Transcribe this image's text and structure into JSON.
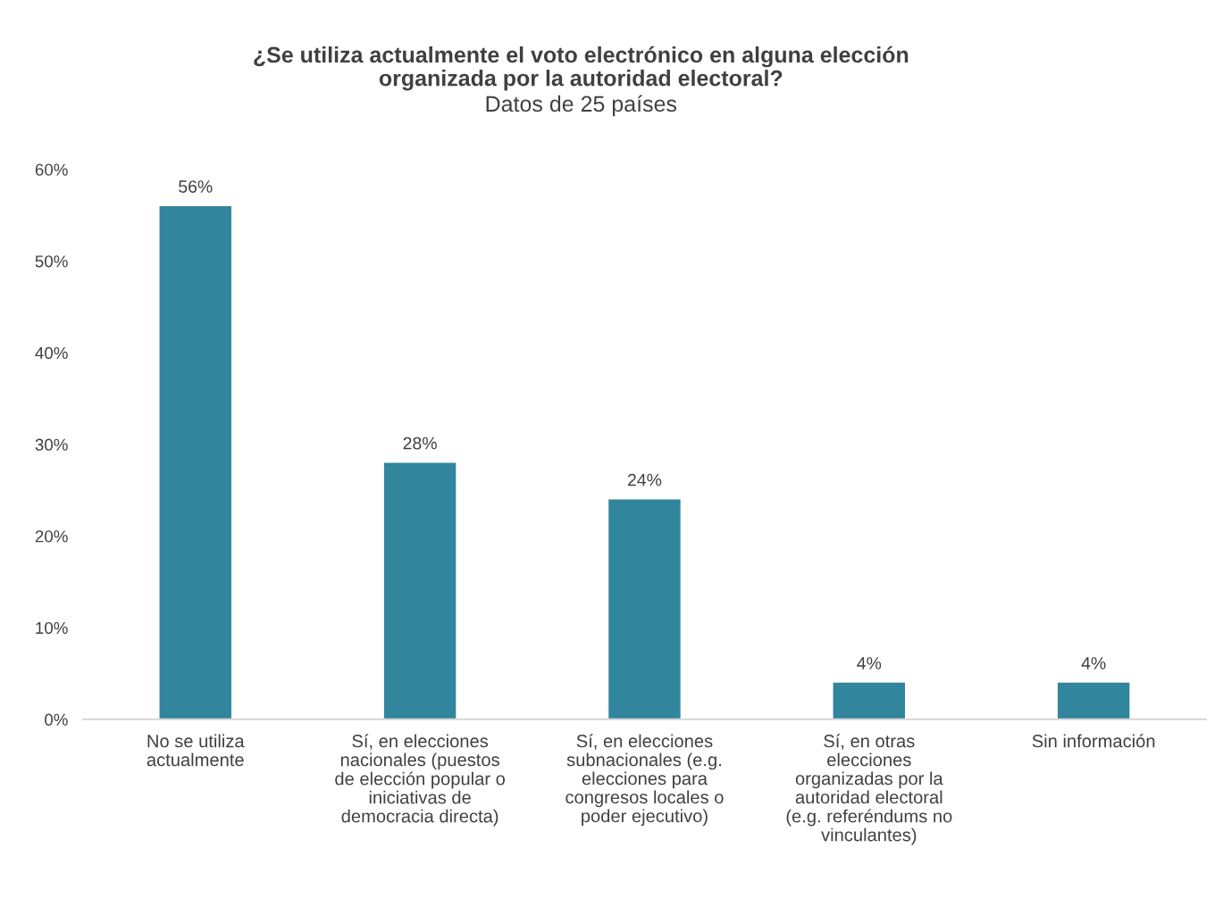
{
  "chart_data": {
    "type": "bar",
    "title": "¿Se utiliza actualmente el voto electrónico en alguna elección\norganizada por la autoridad electoral?",
    "subtitle": "Datos de 25 países",
    "categories": [
      "No se utiliza\nactualmente",
      "Sí, en elecciones\nnacionales (puestos\nde elección popular o\niniciativas de\ndemocracia directa)",
      "Sí, en elecciones\nsubnacionales (e.g.\nelecciones para\ncongresos locales o\npoder ejecutivo)",
      "Sí, en otras\nelecciones\norganizadas por la\nautoridad electoral\n(e.g. referéndums no\nvinculantes)",
      "Sin información"
    ],
    "values": [
      56,
      28,
      24,
      4,
      4
    ],
    "value_labels": [
      "56%",
      "28%",
      "24%",
      "4%",
      "4%"
    ],
    "color": "#31859c",
    "ylim": [
      0,
      60
    ],
    "yticks": [
      {
        "value": 0,
        "label": "0%"
      },
      {
        "value": 10,
        "label": "10%"
      },
      {
        "value": 20,
        "label": "20%"
      },
      {
        "value": 30,
        "label": "30%"
      },
      {
        "value": 40,
        "label": "40%"
      },
      {
        "value": 50,
        "label": "50%"
      },
      {
        "value": 60,
        "label": "60%"
      }
    ],
    "grid": false,
    "legend": false
  }
}
